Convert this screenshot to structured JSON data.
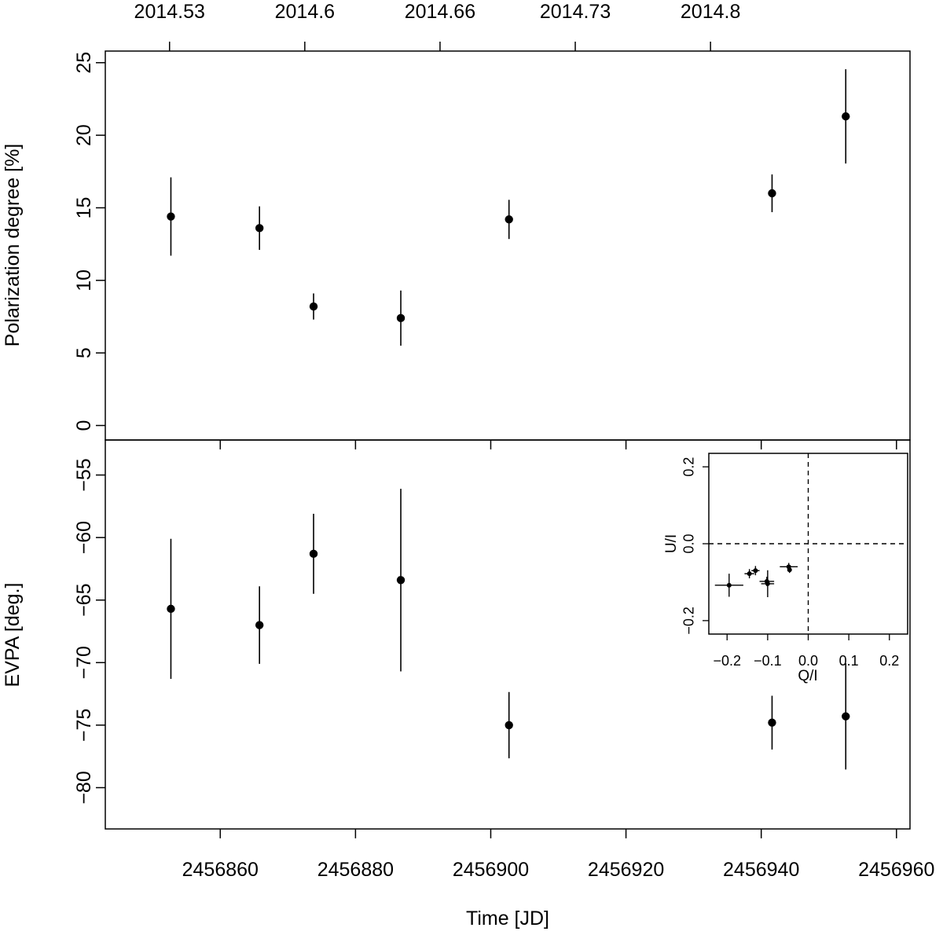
{
  "chart_data": [
    {
      "type": "scatter",
      "panel": "top",
      "title": "",
      "ylabel": "Polarization degree [%]",
      "top_xaxis_ticks": [
        "2014.53",
        "2014.6",
        "2014.66",
        "2014.73",
        "2014.8"
      ],
      "top_xaxis_tick_values": [
        2456852.5,
        2456872.5,
        2456892.5,
        2456912.5,
        2456932.5
      ],
      "xlim": [
        2456843,
        2456962
      ],
      "ylim": [
        -1.0,
        25.8
      ],
      "yticks": [
        "0",
        "5",
        "10",
        "15",
        "20",
        "25"
      ],
      "ytick_values": [
        0,
        5,
        10,
        15,
        20,
        25
      ],
      "series": [
        {
          "x": [
            2456852.7,
            2456865.8,
            2456873.8,
            2456886.7,
            2456902.7,
            2456941.6,
            2456952.5
          ],
          "y": [
            14.4,
            13.6,
            8.2,
            7.4,
            14.2,
            16.0,
            21.3
          ],
          "yerr": [
            2.7,
            1.5,
            0.9,
            1.9,
            1.35,
            1.3,
            3.25
          ]
        }
      ]
    },
    {
      "type": "scatter",
      "panel": "bottom",
      "title": "",
      "xlabel": "Time [JD]",
      "ylabel": "EVPA [deg.]",
      "xlim": [
        2456843,
        2456962
      ],
      "xticks": [
        "2456860",
        "2456880",
        "2456900",
        "2456920",
        "2456940",
        "2456960"
      ],
      "xtick_values": [
        2456860,
        2456880,
        2456900,
        2456920,
        2456940,
        2456960
      ],
      "ylim": [
        -83.3,
        -52.2
      ],
      "yticks": [
        "−55",
        "−60",
        "−65",
        "−70",
        "−75",
        "−80"
      ],
      "ytick_values": [
        -55,
        -60,
        -65,
        -70,
        -75,
        -80
      ],
      "series": [
        {
          "x": [
            2456852.7,
            2456865.8,
            2456873.8,
            2456886.7,
            2456902.7,
            2456941.6,
            2456952.5
          ],
          "y": [
            -65.7,
            -67.0,
            -61.3,
            -63.4,
            -75.0,
            -74.8,
            -74.3
          ],
          "yerr": [
            5.6,
            3.1,
            3.2,
            7.3,
            2.65,
            2.15,
            4.25
          ]
        }
      ]
    },
    {
      "type": "scatter",
      "panel": "inset",
      "xlabel": "Q/I",
      "ylabel": "U/I",
      "xlim": [
        -0.245,
        0.245
      ],
      "ylim": [
        -0.235,
        0.235
      ],
      "xticks": [
        "−0.2",
        "−0.1",
        "0.0",
        "0.1",
        "0.2"
      ],
      "xtick_values": [
        -0.2,
        -0.1,
        0.0,
        0.1,
        0.2
      ],
      "yticks": [
        "−0.2",
        "0.0",
        "0.2"
      ],
      "ytick_values": [
        -0.2,
        0.0,
        0.2
      ],
      "reference_lines": [
        0.0
      ],
      "series": [
        {
          "x": [
            -0.195,
            -0.145,
            -0.13,
            -0.102,
            -0.1,
            -0.048,
            -0.046
          ],
          "y": [
            -0.108,
            -0.078,
            -0.07,
            -0.098,
            -0.104,
            -0.06,
            -0.068
          ],
          "xerr": [
            0.035,
            0.012,
            0.01,
            0.018,
            0.016,
            0.022,
            0.005
          ],
          "yerr": [
            0.03,
            0.012,
            0.012,
            0.012,
            0.035,
            0.01,
            0.008
          ]
        }
      ]
    }
  ],
  "colors": {
    "ink": "#000000",
    "background": "#ffffff"
  }
}
